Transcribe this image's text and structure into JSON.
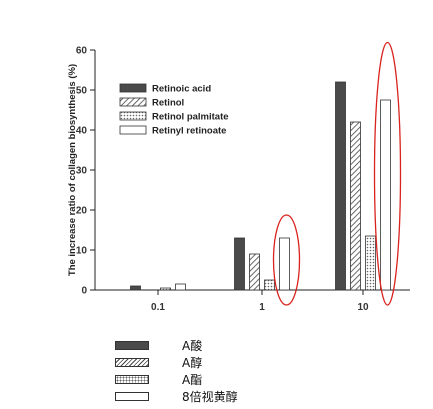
{
  "chart_data": {
    "type": "bar",
    "title": "",
    "xlabel": "",
    "ylabel": "The increase ratio of collagen biosynthesis (%)",
    "categories": [
      "0.1",
      "1",
      "10"
    ],
    "ylim": [
      0,
      60
    ],
    "yticks": [
      0,
      10,
      20,
      30,
      40,
      50,
      60
    ],
    "legend_position": "top-left",
    "series": [
      {
        "name": "Retinoic acid",
        "values": [
          1,
          13,
          52
        ],
        "pattern": "solid",
        "color": "#4a4a4a"
      },
      {
        "name": "Retinol",
        "values": [
          0,
          9,
          42
        ],
        "pattern": "hatch",
        "color": "#444444"
      },
      {
        "name": "Retinol palmitate",
        "values": [
          0.5,
          2.5,
          13.5
        ],
        "pattern": "dots",
        "color": "#666666"
      },
      {
        "name": "Retinyl retinoate",
        "values": [
          1.5,
          13,
          47.5
        ],
        "pattern": "empty",
        "color": "#333333"
      }
    ],
    "highlights": [
      {
        "category": "1",
        "series": "Retinyl retinoate",
        "shape": "ellipse",
        "color": "#d9231d"
      },
      {
        "category": "10",
        "series": "Retinyl retinoate",
        "shape": "ellipse",
        "color": "#d9231d"
      }
    ]
  },
  "translation_legend": [
    {
      "label": "A酸",
      "pattern": "solid"
    },
    {
      "label": "A醇",
      "pattern": "hatch"
    },
    {
      "label": "A酯",
      "pattern": "dots"
    },
    {
      "label": "8倍视黄醇",
      "pattern": "empty"
    }
  ]
}
